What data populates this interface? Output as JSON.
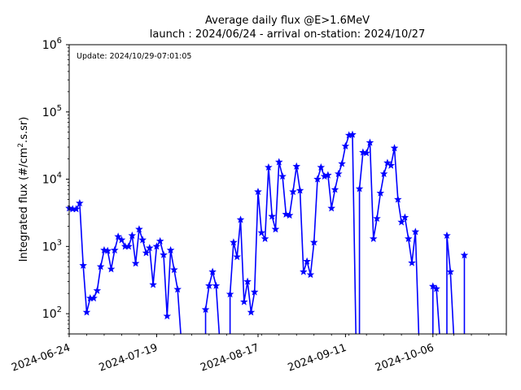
{
  "chart_data": {
    "type": "line",
    "title": "Average daily flux @E>1.6MeV",
    "subtitle": "launch : 2024/06/24 - arrival on-station: 2024/10/27",
    "annotation": "Update: 2024/10/29-07:01:05",
    "ylabel": "Integrated flux (#/cm",
    "ylabel_sup": "2",
    "ylabel_tail": ".s.sr)",
    "xlabel": "",
    "x_is_date": true,
    "xlim": [
      "2024-06-24",
      "2024-10-27"
    ],
    "yscale": "log",
    "ylim": [
      50,
      1000000
    ],
    "grid": false,
    "line_color": "#0000ff",
    "marker": "star",
    "x_ticks": [
      "2024-06-24",
      "2024-07-19",
      "2024-08-17",
      "2024-09-11",
      "2024-10-06"
    ],
    "y_ticks": [
      {
        "value": 100,
        "base": "10",
        "exp": "2"
      },
      {
        "value": 1000,
        "base": "10",
        "exp": "3"
      },
      {
        "value": 10000,
        "base": "10",
        "exp": "4"
      },
      {
        "value": 100000,
        "base": "10",
        "exp": "5"
      },
      {
        "value": 1000000,
        "base": "10",
        "exp": "6"
      }
    ],
    "series": [
      {
        "points": [
          [
            "2024-06-24",
            3700
          ],
          [
            "2024-06-25",
            3600
          ],
          [
            "2024-06-26",
            3600
          ],
          [
            "2024-06-27",
            4400
          ],
          [
            "2024-06-28",
            520
          ],
          [
            "2024-06-29",
            105
          ],
          [
            "2024-06-30",
            170
          ],
          [
            "2024-07-01",
            170
          ],
          [
            "2024-07-02",
            220
          ],
          [
            "2024-07-03",
            500
          ],
          [
            "2024-07-04",
            880
          ],
          [
            "2024-07-05",
            860
          ],
          [
            "2024-07-06",
            460
          ],
          [
            "2024-07-07",
            880
          ],
          [
            "2024-07-08",
            1400
          ],
          [
            "2024-07-09",
            1250
          ],
          [
            "2024-07-10",
            1000
          ],
          [
            "2024-07-11",
            1000
          ],
          [
            "2024-07-12",
            1450
          ],
          [
            "2024-07-13",
            560
          ],
          [
            "2024-07-14",
            1800
          ],
          [
            "2024-07-15",
            1250
          ],
          [
            "2024-07-16",
            800
          ],
          [
            "2024-07-17",
            950
          ],
          [
            "2024-07-18",
            270
          ],
          [
            "2024-07-19",
            1000
          ],
          [
            "2024-07-20",
            1200
          ],
          [
            "2024-07-21",
            750
          ],
          [
            "2024-07-22",
            92
          ],
          [
            "2024-07-23",
            880
          ],
          [
            "2024-07-24",
            450
          ],
          [
            "2024-07-25",
            230
          ],
          [
            "2024-07-26",
            null
          ],
          [
            "2024-07-27",
            null
          ],
          [
            "2024-07-28",
            null
          ],
          [
            "2024-07-29",
            null
          ],
          [
            "2024-07-30",
            null
          ],
          [
            "2024-07-31",
            null
          ],
          [
            "2024-08-01",
            null
          ],
          [
            "2024-08-02",
            115
          ],
          [
            "2024-08-03",
            260
          ],
          [
            "2024-08-04",
            420
          ],
          [
            "2024-08-05",
            260
          ],
          [
            "2024-08-06",
            null
          ],
          [
            "2024-08-07",
            null
          ],
          [
            "2024-08-08",
            null
          ],
          [
            "2024-08-09",
            195
          ],
          [
            "2024-08-10",
            1150
          ],
          [
            "2024-08-11",
            700
          ],
          [
            "2024-08-12",
            2500
          ],
          [
            "2024-08-13",
            150
          ],
          [
            "2024-08-14",
            300
          ],
          [
            "2024-08-15",
            105
          ],
          [
            "2024-08-16",
            210
          ],
          [
            "2024-08-17",
            6500
          ],
          [
            "2024-08-18",
            1600
          ],
          [
            "2024-08-19",
            1300
          ],
          [
            "2024-08-20",
            15000
          ],
          [
            "2024-08-21",
            2800
          ],
          [
            "2024-08-22",
            1800
          ],
          [
            "2024-08-23",
            18000
          ],
          [
            "2024-08-24",
            11000
          ],
          [
            "2024-08-25",
            3000
          ],
          [
            "2024-08-26",
            2900
          ],
          [
            "2024-08-27",
            6500
          ],
          [
            "2024-08-28",
            15500
          ],
          [
            "2024-08-29",
            6800
          ],
          [
            "2024-08-30",
            420
          ],
          [
            "2024-08-31",
            600
          ],
          [
            "2024-09-01",
            380
          ],
          [
            "2024-09-02",
            1150
          ],
          [
            "2024-09-03",
            10000
          ],
          [
            "2024-09-04",
            15000
          ],
          [
            "2024-09-05",
            11000
          ],
          [
            "2024-09-06",
            11500
          ],
          [
            "2024-09-07",
            3700
          ],
          [
            "2024-09-08",
            7000
          ],
          [
            "2024-09-09",
            12000
          ],
          [
            "2024-09-10",
            17000
          ],
          [
            "2024-09-11",
            31000
          ],
          [
            "2024-09-12",
            45000
          ],
          [
            "2024-09-13",
            46000
          ],
          [
            "2024-09-14",
            null
          ],
          [
            "2024-09-15",
            7200
          ],
          [
            "2024-09-16",
            25000
          ],
          [
            "2024-09-17",
            24500
          ],
          [
            "2024-09-18",
            35000
          ],
          [
            "2024-09-19",
            1300
          ],
          [
            "2024-09-20",
            2600
          ],
          [
            "2024-09-21",
            6200
          ],
          [
            "2024-09-22",
            12000
          ],
          [
            "2024-09-23",
            17500
          ],
          [
            "2024-09-24",
            16000
          ],
          [
            "2024-09-25",
            29000
          ],
          [
            "2024-09-26",
            5000
          ],
          [
            "2024-09-27",
            2300
          ],
          [
            "2024-09-28",
            2700
          ],
          [
            "2024-09-29",
            1300
          ],
          [
            "2024-09-30",
            570
          ],
          [
            "2024-10-01",
            1650
          ],
          [
            "2024-10-02",
            null
          ],
          [
            "2024-10-03",
            null
          ],
          [
            "2024-10-04",
            null
          ],
          [
            "2024-10-05",
            null
          ],
          [
            "2024-10-06",
            255
          ],
          [
            "2024-10-07",
            235
          ],
          [
            "2024-10-08",
            null
          ],
          [
            "2024-10-09",
            null
          ],
          [
            "2024-10-10",
            1450
          ],
          [
            "2024-10-11",
            420
          ],
          [
            "2024-10-12",
            null
          ],
          [
            "2024-10-13",
            null
          ],
          [
            "2024-10-14",
            null
          ],
          [
            "2024-10-15",
            740
          ]
        ]
      }
    ]
  }
}
